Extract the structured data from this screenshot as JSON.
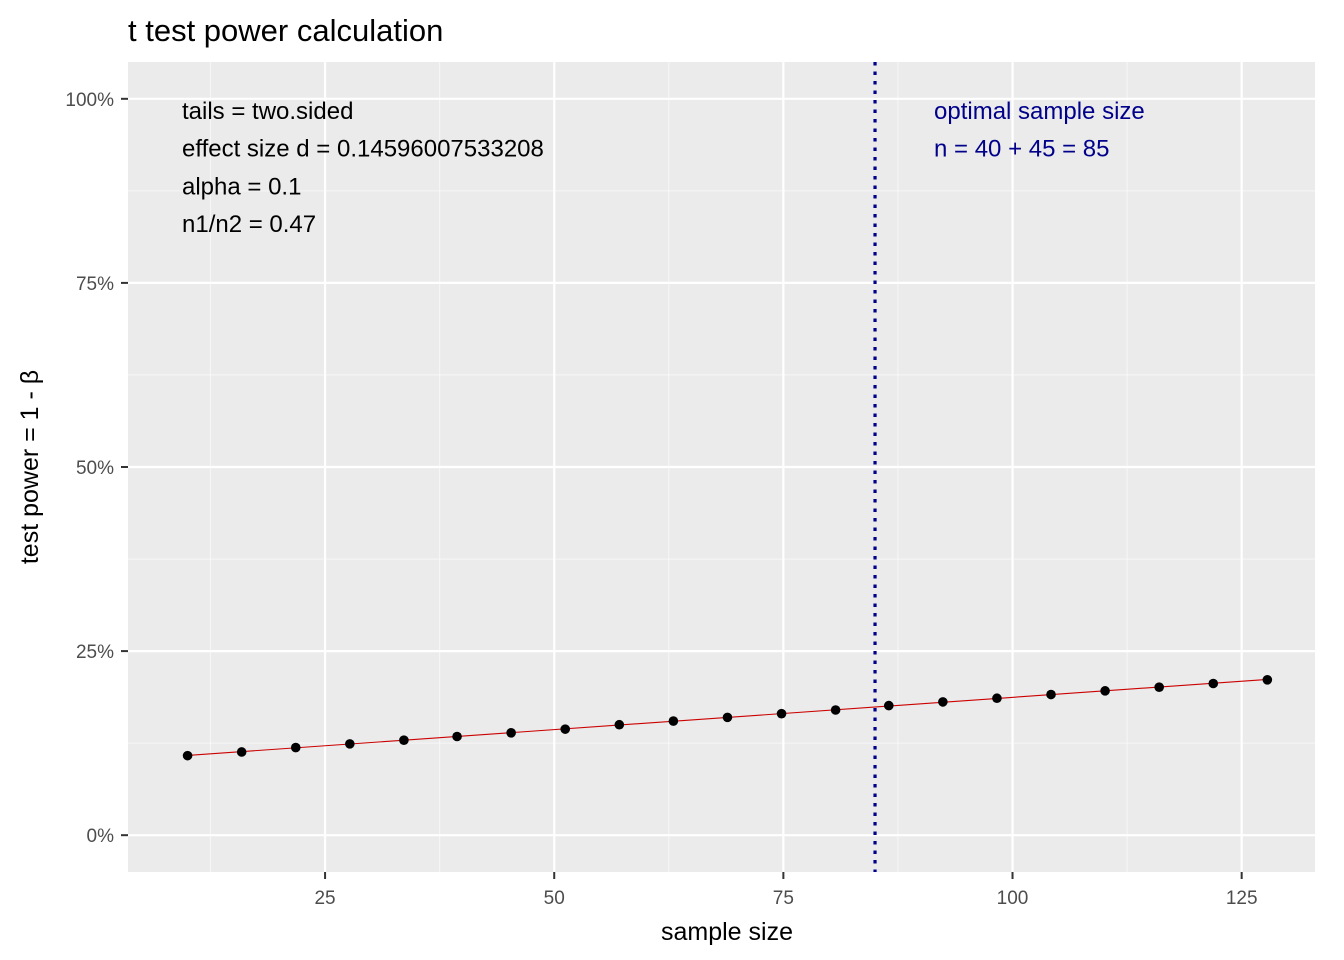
{
  "colors": {
    "panel_bg": "#ebebeb",
    "grid_major": "#ffffff",
    "fit_line": "#cc0000",
    "points": "#000000",
    "vline": "#00008b",
    "annotation_blue": "#00008b"
  },
  "chart_data": {
    "type": "scatter",
    "title": "t test power calculation",
    "xlabel": "sample size",
    "ylabel": "test power = 1 - β",
    "xlim": [
      3.5,
      133
    ],
    "ylim": [
      -5,
      105
    ],
    "x_ticks": [
      25,
      50,
      75,
      100,
      125
    ],
    "x_tick_labels": [
      "25",
      "50",
      "75",
      "100",
      "125"
    ],
    "y_ticks": [
      0,
      25,
      50,
      75,
      100
    ],
    "y_tick_labels": [
      "0%",
      "25%",
      "50%",
      "75%",
      "100%"
    ],
    "grid": true,
    "series": [
      {
        "x": [
          10,
          15.9,
          21.8,
          27.7,
          33.6,
          39.4,
          45.3,
          51.2,
          57.1,
          63.0,
          68.9,
          74.8,
          80.7,
          86.5,
          92.4,
          98.3,
          104.2,
          110.1,
          116.0,
          121.9,
          127.8
        ],
        "y": [
          10.8,
          11.3,
          11.9,
          12.4,
          12.9,
          13.4,
          13.9,
          14.4,
          15.0,
          15.5,
          16.0,
          16.5,
          17.0,
          17.6,
          18.1,
          18.6,
          19.1,
          19.6,
          20.1,
          20.6,
          21.1
        ]
      }
    ],
    "vline": {
      "x": 85,
      "style": "dotted"
    },
    "annotations": {
      "left": [
        "tails = two.sided",
        "effect size d = 0.14596007533208",
        "alpha = 0.1",
        "n1/n2 =  0.47"
      ],
      "right": [
        "optimal sample size",
        "n = 40 + 45 = 85"
      ]
    }
  }
}
